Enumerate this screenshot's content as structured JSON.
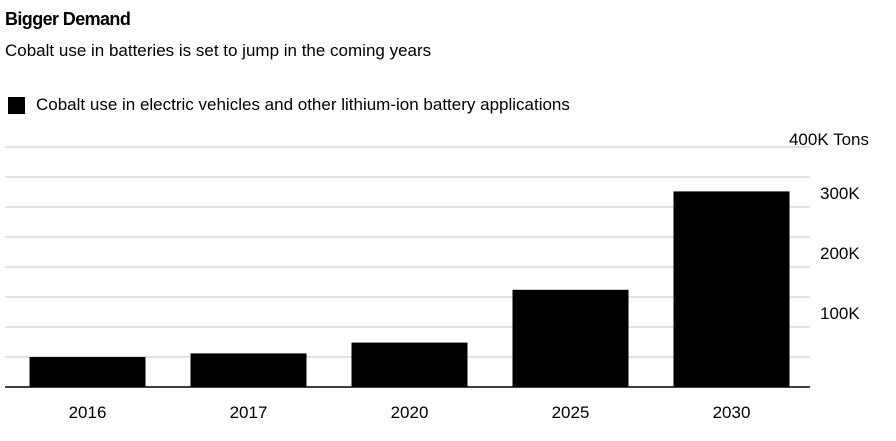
{
  "header": {
    "title": "Bigger Demand",
    "subtitle": "Cobalt use in batteries is set to jump in the coming years"
  },
  "colors": {
    "bar": "#000000",
    "grid": "#d9d9d9",
    "axis": "#000000"
  },
  "chart_data": {
    "type": "bar",
    "title": "Bigger Demand",
    "subtitle": "Cobalt use in batteries is set to jump in the coming years",
    "categories": [
      "2016",
      "2017",
      "2020",
      "2025",
      "2030"
    ],
    "series": [
      {
        "name": "Cobalt use in electric vehicles and other lithium-ion battery applications",
        "values": [
          50000,
          56000,
          74000,
          162000,
          326000
        ]
      }
    ],
    "ylim": [
      0,
      400000
    ],
    "y_ticks": [
      {
        "value": 100000,
        "label": "100K"
      },
      {
        "value": 200000,
        "label": "200K"
      },
      {
        "value": 300000,
        "label": "300K"
      },
      {
        "value": 400000,
        "label": "400K Tons"
      }
    ],
    "y_axis_side": "right",
    "grid": true,
    "legend": "top-left"
  }
}
